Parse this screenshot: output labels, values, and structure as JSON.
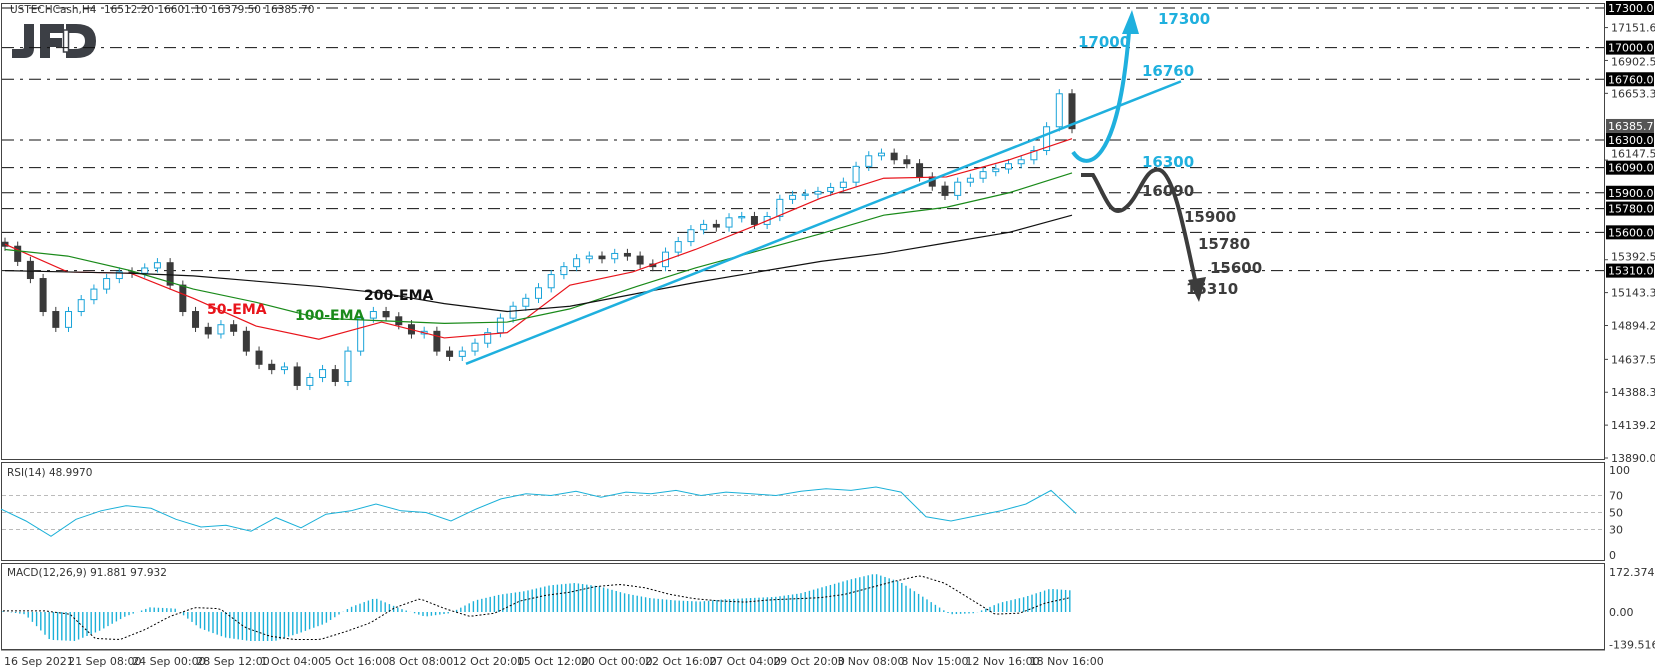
{
  "header": {
    "symbol": "USTECHCash,H4",
    "ohlc": "16512.20 16601.10 16379.50 16385.70",
    "logo": "JFD"
  },
  "colors": {
    "up": "#1aa3d9",
    "down": "#3a3a3a",
    "ema50": "#e8141b",
    "ema100": "#1a8a1a",
    "ema200": "#111111",
    "bull_scenario": "#1fb0de",
    "bear_scenario": "#3c3c3c",
    "rsi": "#1ab0d8",
    "macd_hist": "#1ab0d8"
  },
  "chart_data": [
    {
      "type": "candlestick",
      "title": "",
      "ylim": [
        13890.05,
        17300
      ],
      "y_ticks": [
        "17151.65",
        "16902.50",
        "16653.35",
        "16147.50",
        "15392.50",
        "15143.35",
        "14894.20",
        "14637.50",
        "14388.35",
        "14139.20",
        "13890.05"
      ],
      "current_price": "16385.70",
      "x_tick_labels": [
        "16 Sep 2021",
        "21 Sep 08:00",
        "24 Sep 00:00",
        "28 Sep 12:00",
        "1 Oct 04:00",
        "5 Oct 16:00",
        "8 Oct 08:00",
        "12 Oct 20:00",
        "15 Oct 12:00",
        "20 Oct 00:00",
        "22 Oct 16:00",
        "27 Oct 04:00",
        "29 Oct 20:00",
        "3 Nov 08:00",
        "8 Nov 15:00",
        "12 Nov 16:00",
        "18 Nov 16:00"
      ],
      "close": [
        15495,
        15380,
        15250,
        15000,
        14880,
        15000,
        15090,
        15170,
        15250,
        15300,
        15290,
        15330,
        15370,
        15200,
        15000,
        14880,
        14830,
        14900,
        14850,
        14700,
        14600,
        14560,
        14580,
        14440,
        14500,
        14560,
        14470,
        14700,
        14950,
        15000,
        14960,
        14900,
        14830,
        14850,
        14700,
        14660,
        14700,
        14760,
        14840,
        14950,
        15040,
        15100,
        15180,
        15280,
        15340,
        15400,
        15420,
        15400,
        15440,
        15420,
        15360,
        15340,
        15450,
        15530,
        15620,
        15660,
        15640,
        15710,
        15720,
        15660,
        15720,
        15850,
        15880,
        15890,
        15910,
        15940,
        15980,
        16100,
        16180,
        16200,
        16150,
        16120,
        16020,
        15950,
        15880,
        15980,
        16010,
        16060,
        16080,
        16120,
        16150,
        16220,
        16400,
        16650,
        16385.7
      ],
      "ema": [
        {
          "name": "50-EMA",
          "values": [
            15510,
            15300,
            15290,
            15100,
            14890,
            14790,
            14920,
            14800,
            14840,
            15200,
            15300,
            15470,
            15660,
            15860,
            16010,
            16020,
            16150,
            16310
          ]
        },
        {
          "name": "100-EMA",
          "values": [
            15470,
            15420,
            15310,
            15170,
            15070,
            14950,
            14930,
            14910,
            14920,
            15020,
            15180,
            15330,
            15460,
            15590,
            15730,
            15790,
            15900,
            16050
          ]
        },
        {
          "name": "200-EMA",
          "values": [
            15310,
            15300,
            15290,
            15270,
            15230,
            15190,
            15140,
            15060,
            15000,
            15040,
            15130,
            15220,
            15300,
            15380,
            15440,
            15520,
            15600,
            15730
          ]
        }
      ],
      "levels": [
        "17300.00",
        "17000.00",
        "16760.00",
        "16300.00",
        "16090.00",
        "15900.00",
        "15780.00",
        "15600.00",
        "15310.00"
      ],
      "annotations": {
        "bullish": [
          "17300",
          "17000",
          "16760",
          "16300"
        ],
        "bearish": [
          "16090",
          "15900",
          "15780",
          "15600",
          "15310"
        ]
      },
      "trendline": {
        "from": 14604,
        "to": 16744
      }
    },
    {
      "type": "line",
      "title": "RSI(14) 48.9970",
      "ylim": [
        0,
        100
      ],
      "y_ticks": [
        "100",
        "70",
        "50",
        "30",
        "0"
      ],
      "values": [
        54,
        40,
        22,
        42,
        52,
        58,
        55,
        42,
        33,
        35,
        28,
        44,
        32,
        48,
        52,
        60,
        52,
        50,
        40,
        54,
        66,
        72,
        70,
        75,
        68,
        74,
        72,
        76,
        70,
        74,
        72,
        70,
        75,
        78,
        76,
        80,
        74,
        45,
        40,
        46,
        52,
        60,
        76,
        49
      ]
    },
    {
      "type": "bar",
      "title": "MACD(12,26,9) 91.881 97.932",
      "ylim": [
        -139.516,
        172.374
      ],
      "y_ticks": [
        "172.374",
        "0.00",
        "-139.516"
      ],
      "values": [
        5,
        -10,
        -120,
        -125,
        -80,
        -20,
        20,
        15,
        -70,
        -110,
        -125,
        -125,
        -90,
        -50,
        20,
        60,
        15,
        -20,
        -5,
        50,
        75,
        90,
        115,
        125,
        110,
        80,
        60,
        50,
        45,
        55,
        60,
        65,
        80,
        110,
        140,
        165,
        130,
        60,
        -10,
        -5,
        40,
        65,
        100,
        91.881
      ]
    }
  ]
}
